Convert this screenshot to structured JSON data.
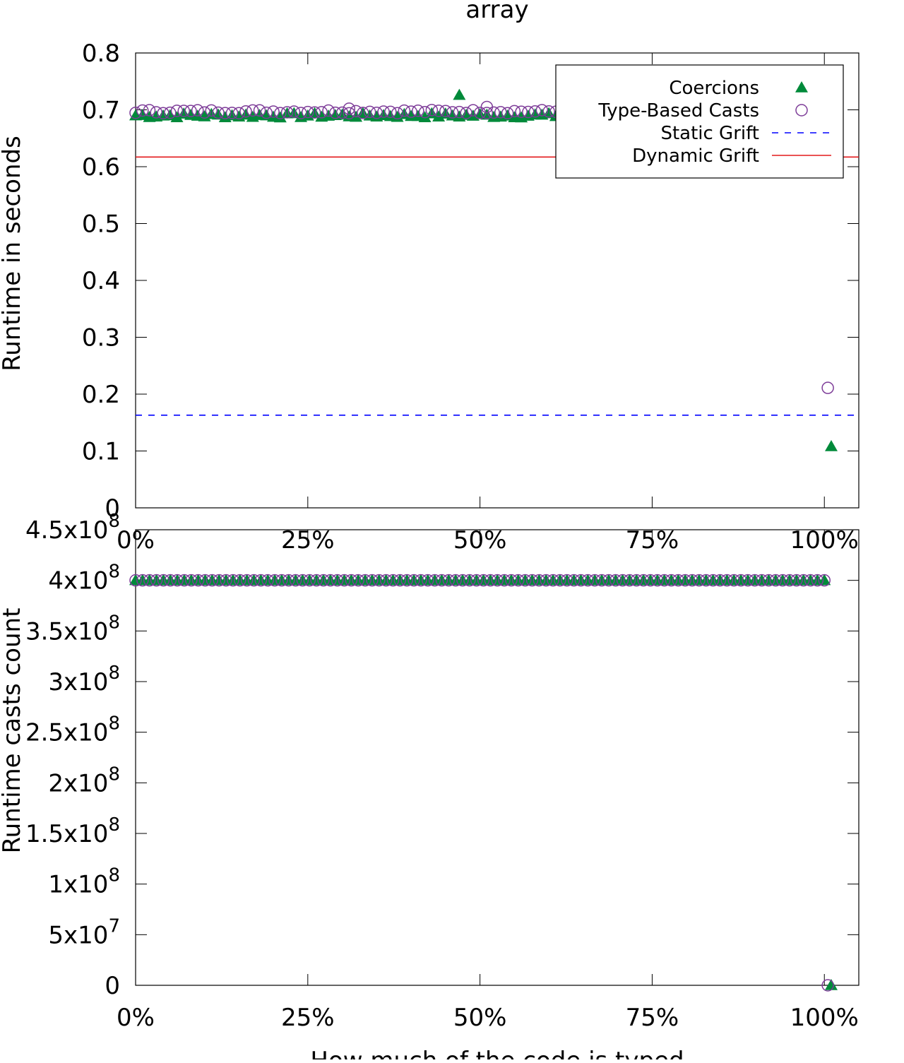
{
  "chart_data": [
    {
      "type": "scatter",
      "title": "array",
      "xlabel": "",
      "ylabel": "Runtime in seconds",
      "xlim": [
        0,
        105
      ],
      "ylim": [
        0,
        0.8
      ],
      "x_ticks": [
        0,
        25,
        50,
        75,
        100
      ],
      "x_tick_labels": [
        "0%",
        "25%",
        "50%",
        "75%",
        "100%"
      ],
      "y_ticks": [
        0,
        0.1,
        0.2,
        0.3,
        0.4,
        0.5,
        0.6,
        0.7,
        0.8
      ],
      "y_tick_labels": [
        "0",
        "0.1",
        "0.2",
        "0.3",
        "0.4",
        "0.5",
        "0.6",
        "0.7",
        "0.8"
      ],
      "grid": false,
      "legend_position": "top-right",
      "series": [
        {
          "name": "Coercions",
          "marker": "filled-triangle",
          "color": "#008a3a",
          "points": {
            "band": {
              "x_from": 0,
              "x_to": 99,
              "y": 0.69,
              "jitter": 0.004,
              "count": 100
            },
            "extra": [
              [
                47,
                0.726
              ],
              [
                101,
                0.108
              ]
            ]
          }
        },
        {
          "name": "Type-Based Casts",
          "marker": "open-circle",
          "color": "#7d3c98",
          "points": {
            "band": {
              "x_from": 0,
              "x_to": 99,
              "y": 0.697,
              "jitter": 0.003,
              "count": 100
            },
            "extra": [
              [
                31,
                0.702
              ],
              [
                51,
                0.705
              ],
              [
                100.5,
                0.211
              ]
            ]
          }
        },
        {
          "name": "Static Grift",
          "line": "dashed",
          "color": "#0000ff",
          "y": 0.163
        },
        {
          "name": "Dynamic Grift",
          "line": "solid",
          "color": "#e31a1c",
          "y": 0.617
        }
      ]
    },
    {
      "type": "scatter",
      "title": "",
      "xlabel": "How much of the code is typed",
      "ylabel": "Runtime casts count",
      "xlim": [
        0,
        105
      ],
      "ylim": [
        0,
        450000000
      ],
      "x_ticks": [
        0,
        25,
        50,
        75,
        100
      ],
      "x_tick_labels": [
        "0%",
        "25%",
        "50%",
        "75%",
        "100%"
      ],
      "y_ticks": [
        0,
        50000000,
        100000000,
        150000000,
        200000000,
        250000000,
        300000000,
        350000000,
        400000000,
        450000000
      ],
      "y_tick_labels": [
        {
          "base": "0",
          "exp": ""
        },
        {
          "base": "5x10",
          "exp": "7"
        },
        {
          "base": "1x10",
          "exp": "8"
        },
        {
          "base": "1.5x10",
          "exp": "8"
        },
        {
          "base": "2x10",
          "exp": "8"
        },
        {
          "base": "2.5x10",
          "exp": "8"
        },
        {
          "base": "3x10",
          "exp": "8"
        },
        {
          "base": "3.5x10",
          "exp": "8"
        },
        {
          "base": "4x10",
          "exp": "8"
        },
        {
          "base": "4.5x10",
          "exp": "8"
        }
      ],
      "grid": false,
      "series": [
        {
          "name": "Coercions",
          "marker": "filled-triangle",
          "color": "#008a3a",
          "points": {
            "band": {
              "x_from": 0,
              "x_to": 100,
              "y": 400000000,
              "jitter": 0,
              "count": 100
            },
            "extra": [
              [
                101,
                0
              ]
            ]
          }
        },
        {
          "name": "Type-Based Casts",
          "marker": "open-circle",
          "color": "#7d3c98",
          "points": {
            "band": {
              "x_from": 0,
              "x_to": 100,
              "y": 400000000,
              "jitter": 0,
              "count": 100
            },
            "extra": [
              [
                100.5,
                0
              ]
            ]
          }
        }
      ]
    }
  ]
}
